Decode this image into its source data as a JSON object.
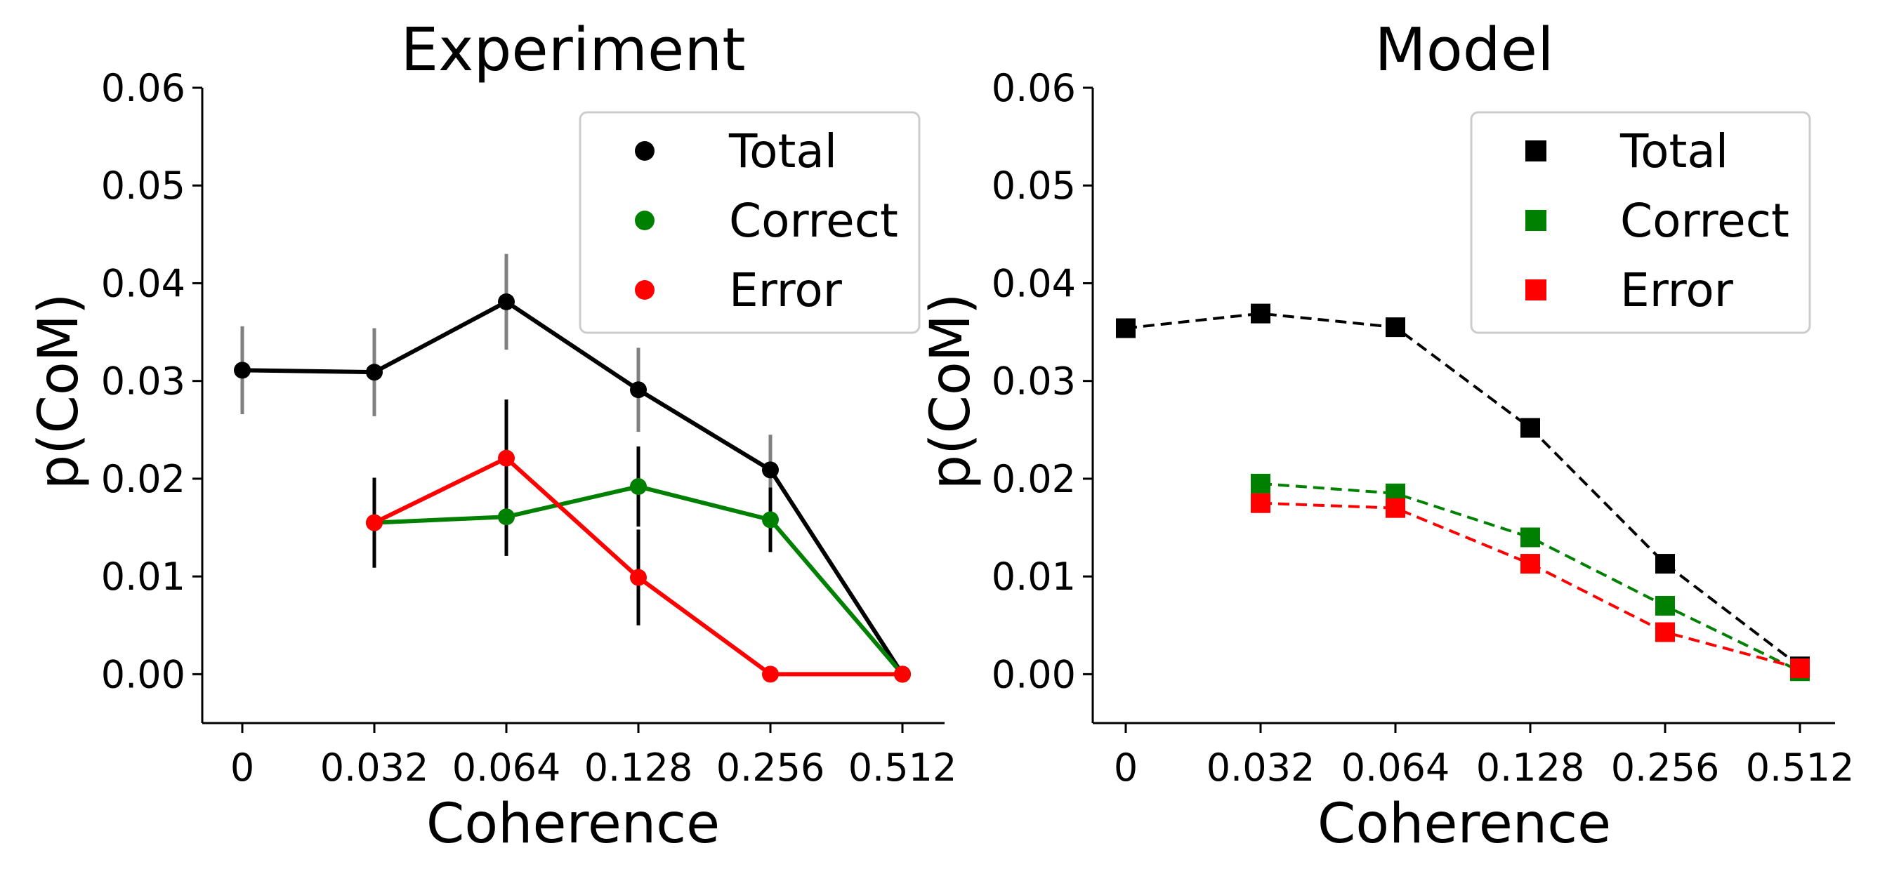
{
  "chart_data": [
    {
      "type": "line",
      "title": "Experiment",
      "xlabel": "Coherence",
      "ylabel": "p(CoM)",
      "categories": [
        "0",
        "0.032",
        "0.064",
        "0.128",
        "0.256",
        "0.512"
      ],
      "ylim": [
        -0.005,
        0.06
      ],
      "yticks": [
        "0.06",
        "0.05",
        "0.04",
        "0.03",
        "0.02",
        "0.01",
        "0.00"
      ],
      "marker": "circle",
      "linestyle": "solid",
      "legend_position": "top-right",
      "series": [
        {
          "name": "Total",
          "color": "#000000",
          "errcolor": "#808080",
          "values": [
            0.0311,
            0.0309,
            0.0381,
            0.0291,
            0.0209,
            0.0
          ],
          "errors": [
            0.0045,
            0.0045,
            0.0049,
            0.0043,
            0.0036,
            0.0
          ]
        },
        {
          "name": "Correct",
          "color": "#008000",
          "errcolor": "#000000",
          "values": [
            null,
            0.0155,
            0.0161,
            0.0192,
            0.0158,
            0.0
          ],
          "errors": [
            null,
            0.0046,
            0.004,
            0.0041,
            0.0033,
            0.0
          ]
        },
        {
          "name": "Error",
          "color": "#ff0000",
          "errcolor": "#000000",
          "values": [
            null,
            0.0155,
            0.0221,
            0.0099,
            0.0,
            0.0
          ],
          "errors": [
            null,
            0.0046,
            0.006,
            0.0049,
            0.0,
            0.0
          ]
        }
      ]
    },
    {
      "type": "line",
      "title": "Model",
      "xlabel": "Coherence",
      "ylabel": "p(CoM)",
      "categories": [
        "0",
        "0.032",
        "0.064",
        "0.128",
        "0.256",
        "0.512"
      ],
      "ylim": [
        -0.005,
        0.06
      ],
      "yticks": [
        "0.06",
        "0.05",
        "0.04",
        "0.03",
        "0.02",
        "0.01",
        "0.00"
      ],
      "marker": "square",
      "linestyle": "dashed",
      "legend_position": "top-right",
      "series": [
        {
          "name": "Total",
          "color": "#000000",
          "values": [
            0.0354,
            0.0369,
            0.0355,
            0.0252,
            0.0113,
            0.0008
          ]
        },
        {
          "name": "Correct",
          "color": "#008000",
          "values": [
            null,
            0.0195,
            0.0185,
            0.014,
            0.007,
            0.0003
          ]
        },
        {
          "name": "Error",
          "color": "#ff0000",
          "values": [
            null,
            0.0175,
            0.017,
            0.0113,
            0.0043,
            0.0006
          ]
        }
      ]
    }
  ]
}
